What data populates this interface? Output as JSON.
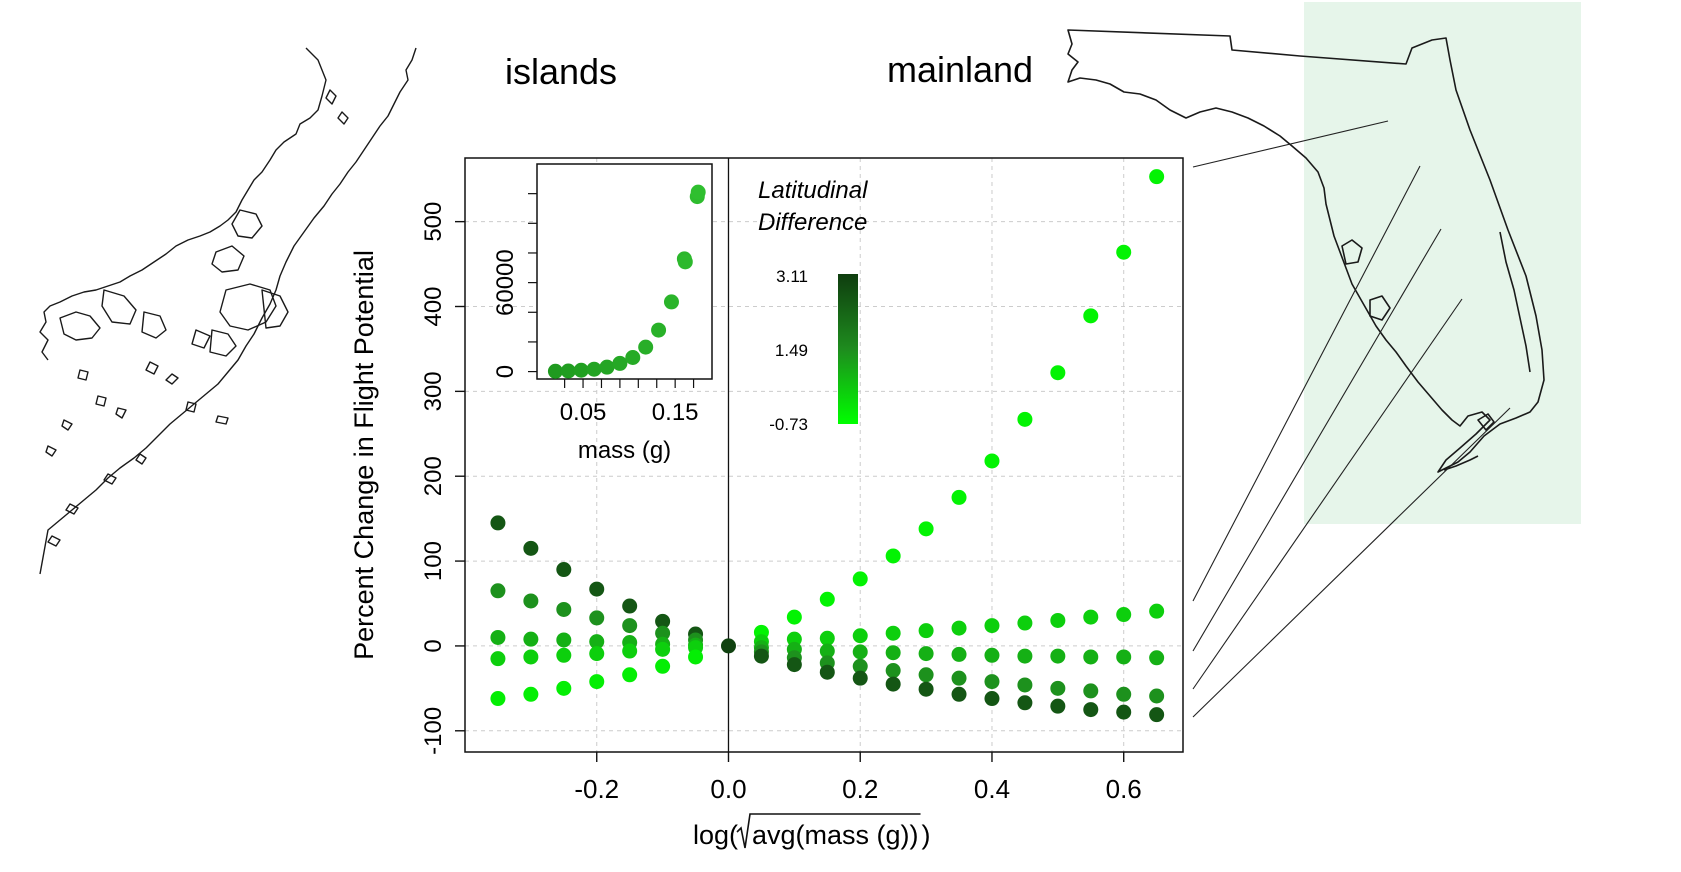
{
  "labels": {
    "islands": "islands",
    "mainland": "mainland",
    "legend_title_1": "Latitudinal",
    "legend_title_2": "Difference"
  },
  "colors": {
    "background": "#ffffff",
    "highlight_box": "#e6f5ea",
    "gradient_high": "#0f3d0f",
    "gradient_mid": "#1e8c1e",
    "gradient_low": "#00ff00",
    "map_stroke": "#1a1a1a",
    "grid": "#cccccc"
  },
  "chart_data": [
    {
      "type": "scatter",
      "xlabel_prefix": "log(",
      "xlabel_radicand": "avg(mass (g))",
      "xlabel_suffix": ")",
      "ylabel": "Percent Change in Flight Potential",
      "xlim": [
        -0.4,
        0.69
      ],
      "ylim": [
        -125,
        575
      ],
      "xticks": [
        -0.2,
        0.0,
        0.2,
        0.4,
        0.6
      ],
      "xtick_labels": [
        "-0.2",
        "0.0",
        "0.2",
        "0.4",
        "0.6"
      ],
      "yticks": [
        -100,
        0,
        100,
        200,
        300,
        400,
        500
      ],
      "ytick_labels": [
        "-100",
        "0",
        "100",
        "200",
        "300",
        "400",
        "500"
      ],
      "grid": true,
      "reference_vline_x": 0,
      "color_scale": {
        "label_high": "3.11",
        "label_mid": "1.49",
        "label_low": "-0.73",
        "max": 3.11,
        "mid": 1.49,
        "min": -0.73
      },
      "points": [
        {
          "x": -0.35,
          "y": 145,
          "c": 2.6
        },
        {
          "x": -0.35,
          "y": 65,
          "c": 1.4
        },
        {
          "x": -0.35,
          "y": 10,
          "c": 0.8
        },
        {
          "x": -0.35,
          "y": -15,
          "c": 0.2
        },
        {
          "x": -0.35,
          "y": -62,
          "c": -0.4
        },
        {
          "x": -0.3,
          "y": 115,
          "c": 2.6
        },
        {
          "x": -0.3,
          "y": 53,
          "c": 1.4
        },
        {
          "x": -0.3,
          "y": 8,
          "c": 0.8
        },
        {
          "x": -0.3,
          "y": -13,
          "c": 0.2
        },
        {
          "x": -0.3,
          "y": -57,
          "c": -0.4
        },
        {
          "x": -0.25,
          "y": 90,
          "c": 2.6
        },
        {
          "x": -0.25,
          "y": 43,
          "c": 1.4
        },
        {
          "x": -0.25,
          "y": 7,
          "c": 0.8
        },
        {
          "x": -0.25,
          "y": -11,
          "c": 0.2
        },
        {
          "x": -0.25,
          "y": -50,
          "c": -0.4
        },
        {
          "x": -0.2,
          "y": 67,
          "c": 2.6
        },
        {
          "x": -0.2,
          "y": 33,
          "c": 1.4
        },
        {
          "x": -0.2,
          "y": 5,
          "c": 0.8
        },
        {
          "x": -0.2,
          "y": -9,
          "c": 0.2
        },
        {
          "x": -0.2,
          "y": -42,
          "c": -0.4
        },
        {
          "x": -0.15,
          "y": 47,
          "c": 2.6
        },
        {
          "x": -0.15,
          "y": 24,
          "c": 1.4
        },
        {
          "x": -0.15,
          "y": 4,
          "c": 0.8
        },
        {
          "x": -0.15,
          "y": -6,
          "c": 0.2
        },
        {
          "x": -0.15,
          "y": -34,
          "c": -0.4
        },
        {
          "x": -0.1,
          "y": 29,
          "c": 2.6
        },
        {
          "x": -0.1,
          "y": 15,
          "c": 1.4
        },
        {
          "x": -0.1,
          "y": 2,
          "c": 0.8
        },
        {
          "x": -0.1,
          "y": -4,
          "c": 0.2
        },
        {
          "x": -0.1,
          "y": -24,
          "c": -0.4
        },
        {
          "x": -0.05,
          "y": 14,
          "c": 2.6
        },
        {
          "x": -0.05,
          "y": 7,
          "c": 1.4
        },
        {
          "x": -0.05,
          "y": 1,
          "c": 0.8
        },
        {
          "x": -0.05,
          "y": -2,
          "c": 0.2
        },
        {
          "x": -0.05,
          "y": -13,
          "c": -0.4
        },
        {
          "x": 0.0,
          "y": 0,
          "c": 3.0
        },
        {
          "x": 0.05,
          "y": 16,
          "c": -0.5
        },
        {
          "x": 0.05,
          "y": 5,
          "c": 0.2
        },
        {
          "x": 0.05,
          "y": -2,
          "c": 0.8
        },
        {
          "x": 0.05,
          "y": -7,
          "c": 1.4
        },
        {
          "x": 0.05,
          "y": -12,
          "c": 2.6
        },
        {
          "x": 0.1,
          "y": 34,
          "c": -0.5
        },
        {
          "x": 0.1,
          "y": 8,
          "c": 0.2
        },
        {
          "x": 0.1,
          "y": -4,
          "c": 0.8
        },
        {
          "x": 0.1,
          "y": -14,
          "c": 1.4
        },
        {
          "x": 0.1,
          "y": -22,
          "c": 2.6
        },
        {
          "x": 0.15,
          "y": 55,
          "c": -0.5
        },
        {
          "x": 0.15,
          "y": 9,
          "c": 0.2
        },
        {
          "x": 0.15,
          "y": -6,
          "c": 0.8
        },
        {
          "x": 0.15,
          "y": -20,
          "c": 1.4
        },
        {
          "x": 0.15,
          "y": -31,
          "c": 2.6
        },
        {
          "x": 0.2,
          "y": 79,
          "c": -0.5
        },
        {
          "x": 0.2,
          "y": 12,
          "c": 0.2
        },
        {
          "x": 0.2,
          "y": -7,
          "c": 0.8
        },
        {
          "x": 0.2,
          "y": -24,
          "c": 1.4
        },
        {
          "x": 0.2,
          "y": -38,
          "c": 2.6
        },
        {
          "x": 0.25,
          "y": 106,
          "c": -0.5
        },
        {
          "x": 0.25,
          "y": 15,
          "c": 0.2
        },
        {
          "x": 0.25,
          "y": -8,
          "c": 0.8
        },
        {
          "x": 0.25,
          "y": -29,
          "c": 1.4
        },
        {
          "x": 0.25,
          "y": -45,
          "c": 2.6
        },
        {
          "x": 0.3,
          "y": 138,
          "c": -0.5
        },
        {
          "x": 0.3,
          "y": 18,
          "c": 0.2
        },
        {
          "x": 0.3,
          "y": -9,
          "c": 0.8
        },
        {
          "x": 0.3,
          "y": -34,
          "c": 1.4
        },
        {
          "x": 0.3,
          "y": -51,
          "c": 2.6
        },
        {
          "x": 0.35,
          "y": 175,
          "c": -0.5
        },
        {
          "x": 0.35,
          "y": 21,
          "c": 0.2
        },
        {
          "x": 0.35,
          "y": -10,
          "c": 0.8
        },
        {
          "x": 0.35,
          "y": -38,
          "c": 1.4
        },
        {
          "x": 0.35,
          "y": -57,
          "c": 2.6
        },
        {
          "x": 0.4,
          "y": 218,
          "c": -0.5
        },
        {
          "x": 0.4,
          "y": 24,
          "c": 0.2
        },
        {
          "x": 0.4,
          "y": -11,
          "c": 0.8
        },
        {
          "x": 0.4,
          "y": -42,
          "c": 1.4
        },
        {
          "x": 0.4,
          "y": -62,
          "c": 2.6
        },
        {
          "x": 0.45,
          "y": 267,
          "c": -0.5
        },
        {
          "x": 0.45,
          "y": 27,
          "c": 0.2
        },
        {
          "x": 0.45,
          "y": -12,
          "c": 0.8
        },
        {
          "x": 0.45,
          "y": -46,
          "c": 1.4
        },
        {
          "x": 0.45,
          "y": -67,
          "c": 2.6
        },
        {
          "x": 0.5,
          "y": 322,
          "c": -0.5
        },
        {
          "x": 0.5,
          "y": 30,
          "c": 0.2
        },
        {
          "x": 0.5,
          "y": -12,
          "c": 0.8
        },
        {
          "x": 0.5,
          "y": -50,
          "c": 1.4
        },
        {
          "x": 0.5,
          "y": -71,
          "c": 2.6
        },
        {
          "x": 0.55,
          "y": 389,
          "c": -0.5
        },
        {
          "x": 0.55,
          "y": 34,
          "c": 0.2
        },
        {
          "x": 0.55,
          "y": -13,
          "c": 0.8
        },
        {
          "x": 0.55,
          "y": -53,
          "c": 1.4
        },
        {
          "x": 0.55,
          "y": -75,
          "c": 2.6
        },
        {
          "x": 0.6,
          "y": 464,
          "c": -0.5
        },
        {
          "x": 0.6,
          "y": 37,
          "c": 0.2
        },
        {
          "x": 0.6,
          "y": -13,
          "c": 0.8
        },
        {
          "x": 0.6,
          "y": -57,
          "c": 1.4
        },
        {
          "x": 0.6,
          "y": -78,
          "c": 2.6
        },
        {
          "x": 0.65,
          "y": 553,
          "c": -0.5
        },
        {
          "x": 0.65,
          "y": 41,
          "c": 0.2
        },
        {
          "x": 0.65,
          "y": -14,
          "c": 0.8
        },
        {
          "x": 0.65,
          "y": -59,
          "c": 1.4
        },
        {
          "x": 0.65,
          "y": -81,
          "c": 2.6
        }
      ]
    },
    {
      "type": "scatter",
      "xlabel": "mass (g)",
      "ylabel": "",
      "xlim": [
        0.0,
        0.19
      ],
      "ylim": [
        -5000,
        140000
      ],
      "xticks": [
        0.05,
        0.15
      ],
      "xtick_labels": [
        "0.05",
        "0.15"
      ],
      "xminor_ticks": [
        0.03,
        0.05,
        0.07,
        0.09,
        0.11,
        0.13,
        0.15,
        0.17
      ],
      "yticks": [
        0,
        60000
      ],
      "ytick_labels": [
        "0",
        "60000"
      ],
      "yminor_ticks": [
        0,
        20000,
        40000,
        60000,
        80000,
        100000,
        120000
      ],
      "points": [
        {
          "x": 0.02,
          "y": 200
        },
        {
          "x": 0.034,
          "y": 400
        },
        {
          "x": 0.048,
          "y": 900
        },
        {
          "x": 0.062,
          "y": 1600
        },
        {
          "x": 0.076,
          "y": 3000
        },
        {
          "x": 0.09,
          "y": 5500
        },
        {
          "x": 0.104,
          "y": 9500
        },
        {
          "x": 0.118,
          "y": 16500
        },
        {
          "x": 0.132,
          "y": 28000
        },
        {
          "x": 0.146,
          "y": 47000
        },
        {
          "x": 0.16,
          "y": 76000
        },
        {
          "x": 0.161,
          "y": 74000
        },
        {
          "x": 0.174,
          "y": 118000
        },
        {
          "x": 0.175,
          "y": 121000
        }
      ]
    }
  ]
}
